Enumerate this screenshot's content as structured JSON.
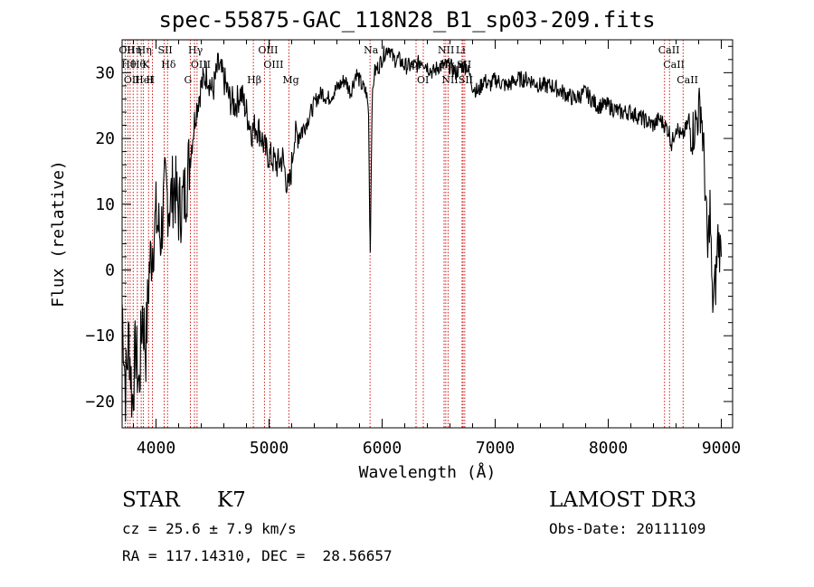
{
  "chart_data": {
    "type": "line",
    "title": "spec-55875-GAC_118N28_B1_sp03-209.fits",
    "xlabel": "Wavelength (Å)",
    "ylabel": "Flux (relative)",
    "xlim": [
      3700,
      9100
    ],
    "ylim": [
      -24,
      35
    ],
    "xticks": [
      4000,
      5000,
      6000,
      7000,
      8000,
      9000
    ],
    "yticks": [
      -20,
      -10,
      0,
      10,
      20,
      30
    ],
    "grid": false,
    "series": [
      {
        "name": "flux",
        "x": [
          3700,
          3730,
          3760,
          3790,
          3820,
          3850,
          3880,
          3910,
          3940,
          3970,
          4000,
          4040,
          4080,
          4120,
          4160,
          4200,
          4250,
          4300,
          4350,
          4400,
          4450,
          4500,
          4550,
          4600,
          4650,
          4700,
          4750,
          4800,
          4850,
          4880,
          4920,
          4970,
          5020,
          5070,
          5120,
          5170,
          5190,
          5220,
          5270,
          5320,
          5370,
          5420,
          5470,
          5520,
          5570,
          5620,
          5670,
          5720,
          5770,
          5820,
          5860,
          5880,
          5890,
          5895,
          5900,
          5910,
          5930,
          5970,
          6020,
          6060,
          6100,
          6150,
          6200,
          6250,
          6300,
          6350,
          6400,
          6450,
          6500,
          6550,
          6600,
          6650,
          6700,
          6750,
          6800,
          6850,
          6900,
          6950,
          7000,
          7100,
          7200,
          7300,
          7400,
          7500,
          7600,
          7700,
          7800,
          7900,
          8000,
          8100,
          8200,
          8300,
          8400,
          8450,
          8500,
          8540,
          8560,
          8600,
          8650,
          8700,
          8750,
          8800,
          8820,
          8850,
          8880,
          8900,
          8920,
          8950,
          8970,
          9000
        ],
        "y": [
          -5,
          -18,
          -10,
          -20,
          -12,
          -18,
          -6,
          -12,
          0,
          4,
          8,
          5,
          12,
          10,
          13,
          9,
          11,
          17,
          24,
          28,
          30,
          27,
          31,
          29,
          26,
          25,
          27,
          24,
          21,
          22,
          21,
          18,
          17,
          16,
          17,
          12,
          14,
          20,
          21,
          22,
          24,
          26,
          27,
          26,
          27,
          28,
          29,
          27,
          30,
          28,
          27,
          24,
          8,
          3,
          10,
          25,
          30,
          31,
          33,
          34,
          32,
          32,
          31,
          31,
          31,
          32,
          31,
          30,
          31,
          31,
          31,
          30,
          31,
          31,
          28,
          27,
          29,
          28,
          29,
          28,
          29,
          29,
          28,
          28,
          27,
          26,
          27,
          25,
          25,
          24,
          24,
          23,
          22,
          23,
          22,
          21,
          19,
          22,
          20,
          22,
          21,
          24,
          25,
          16,
          2,
          10,
          -5,
          -2,
          5,
          2
        ]
      }
    ],
    "lines": [
      {
        "x": 3727,
        "label": "OII"
      },
      {
        "x": 3750,
        "label": "Hθ"
      },
      {
        "x": 3771,
        "label": "OII"
      },
      {
        "x": 3798,
        "label": "Hη"
      },
      {
        "x": 3835,
        "label": "Hθ"
      },
      {
        "x": 3869,
        "label": "HeI"
      },
      {
        "x": 3889,
        "label": "Hη"
      },
      {
        "x": 3934,
        "label": "K"
      },
      {
        "x": 3968,
        "label": "H"
      },
      {
        "x": 4072,
        "label": "SII"
      },
      {
        "x": 4102,
        "label": "Hδ"
      },
      {
        "x": 4304,
        "label": "G"
      },
      {
        "x": 4340,
        "label": "Hγ"
      },
      {
        "x": 4363,
        "label": "OIII"
      },
      {
        "x": 4861,
        "label": "Hβ"
      },
      {
        "x": 4959,
        "label": "OIII"
      },
      {
        "x": 5007,
        "label": "OIII"
      },
      {
        "x": 5175,
        "label": "Mg"
      },
      {
        "x": 5893,
        "label": "Na"
      },
      {
        "x": 6300,
        "label": "OI"
      },
      {
        "x": 6364,
        "label": "OI"
      },
      {
        "x": 6548,
        "label": "NII"
      },
      {
        "x": 6563,
        "label": "Hα"
      },
      {
        "x": 6583,
        "label": "NII"
      },
      {
        "x": 6707,
        "label": "Li"
      },
      {
        "x": 6716,
        "label": "SII"
      },
      {
        "x": 6731,
        "label": "SII"
      },
      {
        "x": 8498,
        "label": "CaII"
      },
      {
        "x": 8542,
        "label": "CaII"
      },
      {
        "x": 8662,
        "label": "CaII"
      }
    ]
  },
  "info": {
    "class": "STAR",
    "subclass": "K7",
    "survey": "LAMOST DR3",
    "cz": "cz = 25.6 ± 7.9 km/s",
    "obs_date": "Obs-Date: 20111109",
    "coords": "RA = 117.14310, DEC =  28.56657"
  },
  "colors": {
    "line": "#000000",
    "marker": "#cc0000",
    "background": "#ffffff"
  }
}
